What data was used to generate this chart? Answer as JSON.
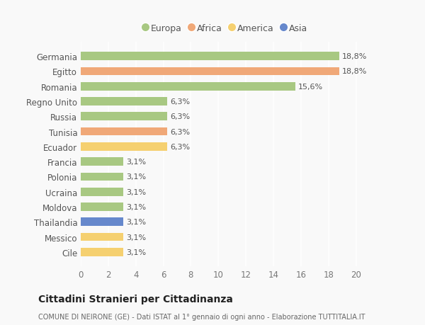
{
  "countries": [
    "Cile",
    "Messico",
    "Thailandia",
    "Moldova",
    "Ucraina",
    "Polonia",
    "Francia",
    "Ecuador",
    "Tunisia",
    "Russia",
    "Regno Unito",
    "Romania",
    "Egitto",
    "Germania"
  ],
  "values": [
    3.1,
    3.1,
    3.1,
    3.1,
    3.1,
    3.1,
    3.1,
    6.3,
    6.3,
    6.3,
    6.3,
    15.6,
    18.8,
    18.8
  ],
  "continents": [
    "America",
    "America",
    "Asia",
    "Europa",
    "Europa",
    "Europa",
    "Europa",
    "America",
    "Africa",
    "Europa",
    "Europa",
    "Europa",
    "Africa",
    "Europa"
  ],
  "continent_colors": {
    "Europa": "#a8c882",
    "Africa": "#f0a878",
    "America": "#f5d070",
    "Asia": "#6688cc"
  },
  "legend_items": [
    {
      "label": "Europa",
      "color": "#a8c882"
    },
    {
      "label": "Africa",
      "color": "#f0a878"
    },
    {
      "label": "America",
      "color": "#f5d070"
    },
    {
      "label": "Asia",
      "color": "#6688cc"
    }
  ],
  "xlim": [
    0,
    21
  ],
  "xticks": [
    0,
    2,
    4,
    6,
    8,
    10,
    12,
    14,
    16,
    18,
    20
  ],
  "title": "Cittadini Stranieri per Cittadinanza",
  "subtitle": "COMUNE DI NEIRONE (GE) - Dati ISTAT al 1° gennaio di ogni anno - Elaborazione TUTTITALIA.IT",
  "background_color": "#f9f9f9",
  "grid_color": "#ffffff",
  "bar_height": 0.55
}
